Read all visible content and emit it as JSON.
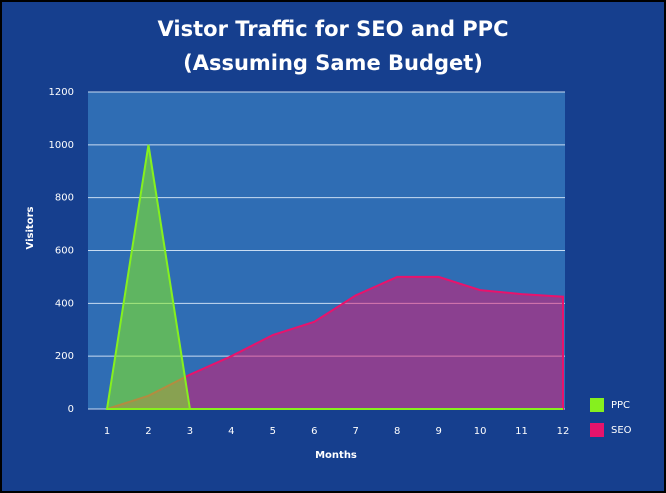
{
  "chart_data": {
    "type": "area",
    "title": "Vistor Traffic for SEO and PPC",
    "subtitle": "(Assuming Same Budget)",
    "x_label": "Months",
    "y_label": "Visitors",
    "x": [
      1,
      2,
      3,
      4,
      5,
      6,
      7,
      8,
      9,
      10,
      11,
      12
    ],
    "xticks": [
      1,
      2,
      3,
      4,
      5,
      6,
      7,
      8,
      9,
      10,
      11,
      12
    ],
    "series": [
      {
        "name": "SEO",
        "color": "#e8136c",
        "values": [
          0,
          50,
          130,
          200,
          280,
          330,
          430,
          500,
          500,
          450,
          435,
          425
        ]
      },
      {
        "name": "PPC",
        "color": "#86f01e",
        "values": [
          0,
          1000,
          0,
          0,
          0,
          0,
          0,
          0,
          0,
          0,
          0,
          0
        ]
      }
    ],
    "legend_order": [
      "PPC",
      "SEO"
    ],
    "ylim": [
      0,
      1200
    ],
    "yticks": [
      0,
      200,
      400,
      600,
      800,
      1000,
      1200
    ],
    "grid": true,
    "legend": "right"
  }
}
